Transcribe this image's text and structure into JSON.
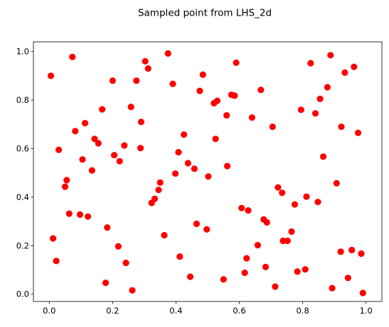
{
  "chart_data": {
    "type": "scatter",
    "title": "Sampled point from LHS_2d",
    "xlabel": "",
    "ylabel": "",
    "xlim": [
      -0.05,
      1.05
    ],
    "ylim": [
      -0.03,
      1.04
    ],
    "xticks": [
      "0.0",
      "0.2",
      "0.4",
      "0.6",
      "0.8",
      "1.0"
    ],
    "yticks": [
      "0.0",
      "0.2",
      "0.4",
      "0.6",
      "0.8",
      "1.0"
    ],
    "grid": false,
    "marker_color": "#ff0000",
    "points": [
      [
        0.005,
        0.9
      ],
      [
        0.012,
        0.23
      ],
      [
        0.022,
        0.137
      ],
      [
        0.03,
        0.595
      ],
      [
        0.05,
        0.443
      ],
      [
        0.055,
        0.47
      ],
      [
        0.063,
        0.332
      ],
      [
        0.073,
        0.978
      ],
      [
        0.082,
        0.672
      ],
      [
        0.097,
        0.328
      ],
      [
        0.105,
        0.555
      ],
      [
        0.113,
        0.705
      ],
      [
        0.122,
        0.32
      ],
      [
        0.135,
        0.51
      ],
      [
        0.143,
        0.64
      ],
      [
        0.155,
        0.622
      ],
      [
        0.167,
        0.762
      ],
      [
        0.178,
        0.047
      ],
      [
        0.183,
        0.275
      ],
      [
        0.2,
        0.88
      ],
      [
        0.205,
        0.573
      ],
      [
        0.218,
        0.197
      ],
      [
        0.222,
        0.548
      ],
      [
        0.237,
        0.613
      ],
      [
        0.242,
        0.129
      ],
      [
        0.258,
        0.772
      ],
      [
        0.262,
        0.016
      ],
      [
        0.275,
        0.88
      ],
      [
        0.288,
        0.602
      ],
      [
        0.29,
        0.71
      ],
      [
        0.303,
        0.96
      ],
      [
        0.312,
        0.93
      ],
      [
        0.323,
        0.376
      ],
      [
        0.333,
        0.393
      ],
      [
        0.345,
        0.43
      ],
      [
        0.35,
        0.46
      ],
      [
        0.363,
        0.243
      ],
      [
        0.375,
        0.992
      ],
      [
        0.39,
        0.867
      ],
      [
        0.398,
        0.497
      ],
      [
        0.408,
        0.585
      ],
      [
        0.412,
        0.155
      ],
      [
        0.425,
        0.658
      ],
      [
        0.438,
        0.54
      ],
      [
        0.445,
        0.072
      ],
      [
        0.458,
        0.517
      ],
      [
        0.465,
        0.29
      ],
      [
        0.475,
        0.838
      ],
      [
        0.485,
        0.905
      ],
      [
        0.497,
        0.267
      ],
      [
        0.502,
        0.485
      ],
      [
        0.52,
        0.787
      ],
      [
        0.525,
        0.64
      ],
      [
        0.53,
        0.797
      ],
      [
        0.55,
        0.061
      ],
      [
        0.56,
        0.737
      ],
      [
        0.562,
        0.528
      ],
      [
        0.575,
        0.822
      ],
      [
        0.585,
        0.818
      ],
      [
        0.59,
        0.954
      ],
      [
        0.607,
        0.355
      ],
      [
        0.617,
        0.088
      ],
      [
        0.623,
        0.148
      ],
      [
        0.628,
        0.345
      ],
      [
        0.64,
        0.728
      ],
      [
        0.658,
        0.202
      ],
      [
        0.668,
        0.842
      ],
      [
        0.677,
        0.308
      ],
      [
        0.683,
        0.112
      ],
      [
        0.687,
        0.296
      ],
      [
        0.705,
        0.69
      ],
      [
        0.713,
        0.031
      ],
      [
        0.722,
        0.44
      ],
      [
        0.735,
        0.418
      ],
      [
        0.738,
        0.22
      ],
      [
        0.752,
        0.22
      ],
      [
        0.765,
        0.258
      ],
      [
        0.775,
        0.37
      ],
      [
        0.783,
        0.093
      ],
      [
        0.795,
        0.76
      ],
      [
        0.808,
        0.102
      ],
      [
        0.812,
        0.402
      ],
      [
        0.825,
        0.952
      ],
      [
        0.84,
        0.745
      ],
      [
        0.848,
        0.38
      ],
      [
        0.855,
        0.805
      ],
      [
        0.865,
        0.567
      ],
      [
        0.878,
        0.853
      ],
      [
        0.888,
        0.985
      ],
      [
        0.893,
        0.025
      ],
      [
        0.907,
        0.457
      ],
      [
        0.92,
        0.175
      ],
      [
        0.922,
        0.69
      ],
      [
        0.933,
        0.913
      ],
      [
        0.943,
        0.067
      ],
      [
        0.955,
        0.182
      ],
      [
        0.962,
        0.937
      ],
      [
        0.975,
        0.665
      ],
      [
        0.985,
        0.167
      ],
      [
        0.99,
        0.005
      ]
    ]
  }
}
